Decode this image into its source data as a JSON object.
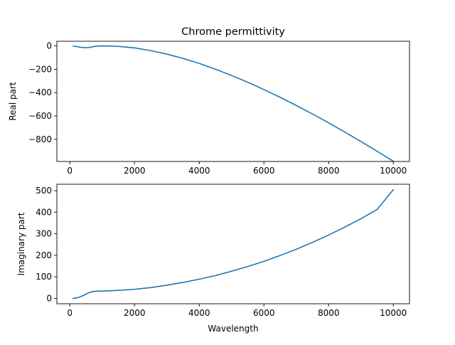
{
  "chart_data": [
    {
      "type": "line",
      "title": "Chrome permittivity",
      "xlabel": "",
      "ylabel": "Real part",
      "xlim": [
        -400,
        10500
      ],
      "ylim": [
        -990,
        40
      ],
      "xticks": [
        0,
        2000,
        4000,
        6000,
        8000,
        10000
      ],
      "yticks": [
        0,
        -200,
        -400,
        -600,
        -800
      ],
      "xtick_labels": [
        "0",
        "2000",
        "4000",
        "6000",
        "8000",
        "10000"
      ],
      "ytick_labels": [
        "0",
        "−200",
        "−400",
        "−600",
        "−800"
      ],
      "grid": false,
      "series": [
        {
          "color": "#1f77b4",
          "x": [
            100,
            200,
            300,
            400,
            500,
            600,
            700,
            800,
            900,
            1000,
            1200,
            1500,
            2000,
            2500,
            3000,
            3500,
            4000,
            4500,
            5000,
            5500,
            6000,
            6500,
            7000,
            7500,
            8000,
            8500,
            9000,
            9500,
            10000
          ],
          "y": [
            -2,
            -5,
            -10,
            -14,
            -15,
            -13,
            -8,
            -3,
            -1,
            0,
            -1,
            -4,
            -17,
            -40,
            -70,
            -107,
            -150,
            -199,
            -253,
            -311,
            -374,
            -440,
            -510,
            -583,
            -659,
            -738,
            -819,
            -903,
            -988
          ]
        }
      ]
    },
    {
      "type": "line",
      "title": "",
      "xlabel": "Wavelength",
      "ylabel": "Imaginary part",
      "xlim": [
        -400,
        10500
      ],
      "ylim": [
        -25,
        530
      ],
      "xticks": [
        0,
        2000,
        4000,
        6000,
        8000,
        10000
      ],
      "yticks": [
        0,
        100,
        200,
        300,
        400,
        500
      ],
      "xtick_labels": [
        "0",
        "2000",
        "4000",
        "6000",
        "8000",
        "10000"
      ],
      "ytick_labels": [
        "0",
        "100",
        "200",
        "300",
        "400",
        "500"
      ],
      "grid": false,
      "series": [
        {
          "color": "#1f77b4",
          "x": [
            100,
            200,
            300,
            400,
            500,
            600,
            700,
            800,
            900,
            1000,
            1200,
            1500,
            2000,
            2500,
            3000,
            3500,
            4000,
            4500,
            5000,
            5500,
            6000,
            6500,
            7000,
            7500,
            8000,
            8500,
            9000,
            9500,
            10000
          ],
          "y": [
            0,
            2,
            6,
            12,
            20,
            27,
            31,
            33,
            34,
            34,
            35,
            37,
            42,
            50,
            61,
            74,
            89,
            106,
            126,
            148,
            172,
            199,
            228,
            260,
            294,
            331,
            370,
            413,
            505
          ]
        }
      ]
    }
  ]
}
